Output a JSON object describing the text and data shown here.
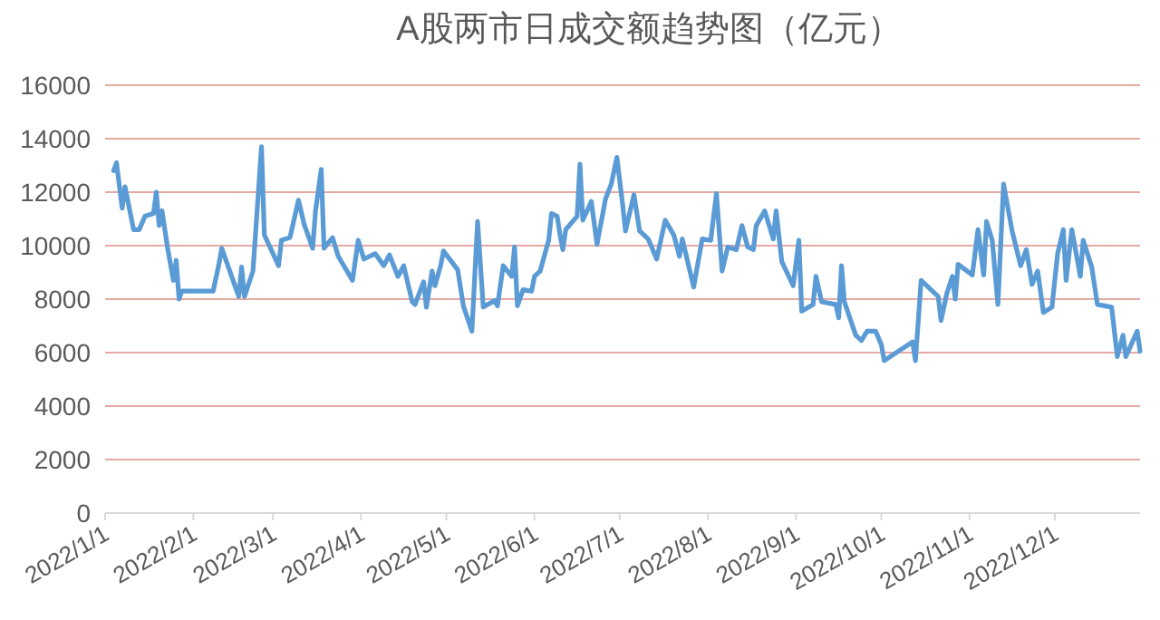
{
  "chart_data": {
    "type": "line",
    "title": "A股两市日成交额趋势图（亿元）",
    "x": [
      "2022-01-04",
      "2022-01-05",
      "2022-01-07",
      "2022-01-08",
      "2022-01-11",
      "2022-01-13",
      "2022-01-15",
      "2022-01-18",
      "2022-01-19",
      "2022-01-20",
      "2022-01-21",
      "2022-01-23",
      "2022-01-25",
      "2022-01-26",
      "2022-01-27",
      "2022-01-28",
      "2022-02-08",
      "2022-02-10",
      "2022-02-11",
      "2022-02-17",
      "2022-02-18",
      "2022-02-19",
      "2022-02-22",
      "2022-02-25",
      "2022-02-26",
      "2022-03-03",
      "2022-03-04",
      "2022-03-07",
      "2022-03-10",
      "2022-03-12",
      "2022-03-15",
      "2022-03-16",
      "2022-03-18",
      "2022-03-19",
      "2022-03-22",
      "2022-03-24",
      "2022-03-29",
      "2022-03-31",
      "2022-04-02",
      "2022-04-06",
      "2022-04-09",
      "2022-04-11",
      "2022-04-14",
      "2022-04-16",
      "2022-04-19",
      "2022-04-20",
      "2022-04-23",
      "2022-04-24",
      "2022-04-26",
      "2022-04-27",
      "2022-04-29",
      "2022-04-30",
      "2022-05-05",
      "2022-05-07",
      "2022-05-10",
      "2022-05-12",
      "2022-05-14",
      "2022-05-18",
      "2022-05-19",
      "2022-05-21",
      "2022-05-24",
      "2022-05-25",
      "2022-05-26",
      "2022-05-28",
      "2022-05-31",
      "2022-06-01",
      "2022-06-03",
      "2022-06-06",
      "2022-06-07",
      "2022-06-09",
      "2022-06-10",
      "2022-06-11",
      "2022-06-12",
      "2022-06-16",
      "2022-06-17",
      "2022-06-18",
      "2022-06-21",
      "2022-06-23",
      "2022-06-26",
      "2022-06-28",
      "2022-06-30",
      "2022-07-02",
      "2022-07-03",
      "2022-07-06",
      "2022-07-08",
      "2022-07-11",
      "2022-07-14",
      "2022-07-17",
      "2022-07-20",
      "2022-07-22",
      "2022-07-23",
      "2022-07-27",
      "2022-07-30",
      "2022-08-02",
      "2022-08-04",
      "2022-08-06",
      "2022-08-08",
      "2022-08-11",
      "2022-08-13",
      "2022-08-15",
      "2022-08-17",
      "2022-08-18",
      "2022-08-21",
      "2022-08-24",
      "2022-08-25",
      "2022-08-27",
      "2022-08-31",
      "2022-09-02",
      "2022-09-03",
      "2022-09-07",
      "2022-09-08",
      "2022-09-10",
      "2022-09-15",
      "2022-09-16",
      "2022-09-17",
      "2022-09-18",
      "2022-09-22",
      "2022-09-24",
      "2022-09-26",
      "2022-09-29",
      "2022-10-01",
      "2022-10-02",
      "2022-10-12",
      "2022-10-13",
      "2022-10-14",
      "2022-10-15",
      "2022-10-21",
      "2022-10-22",
      "2022-10-24",
      "2022-10-26",
      "2022-10-27",
      "2022-10-28",
      "2022-11-02",
      "2022-11-04",
      "2022-11-06",
      "2022-11-07",
      "2022-11-09",
      "2022-11-11",
      "2022-11-13",
      "2022-11-16",
      "2022-11-19",
      "2022-11-21",
      "2022-11-23",
      "2022-11-25",
      "2022-11-27",
      "2022-11-30",
      "2022-12-02",
      "2022-12-04",
      "2022-12-05",
      "2022-12-07",
      "2022-12-10",
      "2022-12-11",
      "2022-12-14",
      "2022-12-16",
      "2022-12-21",
      "2022-12-23",
      "2022-12-25",
      "2022-12-26",
      "2022-12-30",
      "2022-12-31"
    ],
    "series": [
      {
        "color": "#5b9bd5",
        "values": [
          12800,
          13100,
          11400,
          12200,
          10600,
          10600,
          11100,
          11200,
          12000,
          10750,
          11300,
          9900,
          8700,
          9450,
          8000,
          8300,
          8300,
          9300,
          9900,
          8100,
          9200,
          8100,
          9050,
          13700,
          10400,
          9250,
          10200,
          10300,
          11700,
          10800,
          9900,
          11300,
          12850,
          9900,
          10300,
          9600,
          8700,
          10200,
          9500,
          9700,
          9250,
          9650,
          8850,
          9250,
          7900,
          7800,
          8650,
          7700,
          9050,
          8500,
          9250,
          9800,
          9100,
          7750,
          6800,
          10900,
          7700,
          7950,
          7750,
          9250,
          8850,
          9950,
          7750,
          8350,
          8300,
          8850,
          9050,
          10200,
          11200,
          11100,
          10400,
          9850,
          10600,
          11100,
          13050,
          10950,
          11650,
          10050,
          11750,
          12300,
          13300,
          11550,
          10550,
          11900,
          10550,
          10250,
          9500,
          10950,
          10400,
          9600,
          10250,
          8450,
          10250,
          10200,
          11950,
          9050,
          9950,
          9850,
          10750,
          9950,
          9850,
          10750,
          11300,
          10250,
          11300,
          9400,
          8500,
          10200,
          7550,
          7800,
          8850,
          7900,
          7800,
          7300,
          9250,
          7900,
          6650,
          6450,
          6800,
          6800,
          6300,
          5700,
          6400,
          5700,
          7200,
          8700,
          8100,
          7200,
          8200,
          8850,
          8000,
          9300,
          8900,
          10600,
          8900,
          10900,
          10200,
          7800,
          12300,
          10550,
          9250,
          9850,
          8550,
          9050,
          7500,
          7700,
          9700,
          10600,
          8700,
          10600,
          8850,
          10200,
          9200,
          7800,
          7700,
          5850,
          6650,
          5850,
          6800,
          6050
        ]
      }
    ],
    "xlim": [
      "2022-01-01",
      "2022-12-31"
    ],
    "xticks": [
      {
        "value": "2022-01-01",
        "label": "2022/1/1"
      },
      {
        "value": "2022-02-01",
        "label": "2022/2/1"
      },
      {
        "value": "2022-03-01",
        "label": "2022/3/1"
      },
      {
        "value": "2022-04-01",
        "label": "2022/4/1"
      },
      {
        "value": "2022-05-01",
        "label": "2022/5/1"
      },
      {
        "value": "2022-06-01",
        "label": "2022/6/1"
      },
      {
        "value": "2022-07-01",
        "label": "2022/7/1"
      },
      {
        "value": "2022-08-01",
        "label": "2022/8/1"
      },
      {
        "value": "2022-09-01",
        "label": "2022/9/1"
      },
      {
        "value": "2022-10-01",
        "label": "2022/10/1"
      },
      {
        "value": "2022-11-01",
        "label": "2022/11/1"
      },
      {
        "value": "2022-12-01",
        "label": "2022/12/1"
      }
    ],
    "ylim": [
      0,
      16000
    ],
    "yticks": [
      0,
      2000,
      4000,
      6000,
      8000,
      10000,
      12000,
      14000,
      16000
    ],
    "grid": "y",
    "marker": "none",
    "line_style": "solid"
  }
}
